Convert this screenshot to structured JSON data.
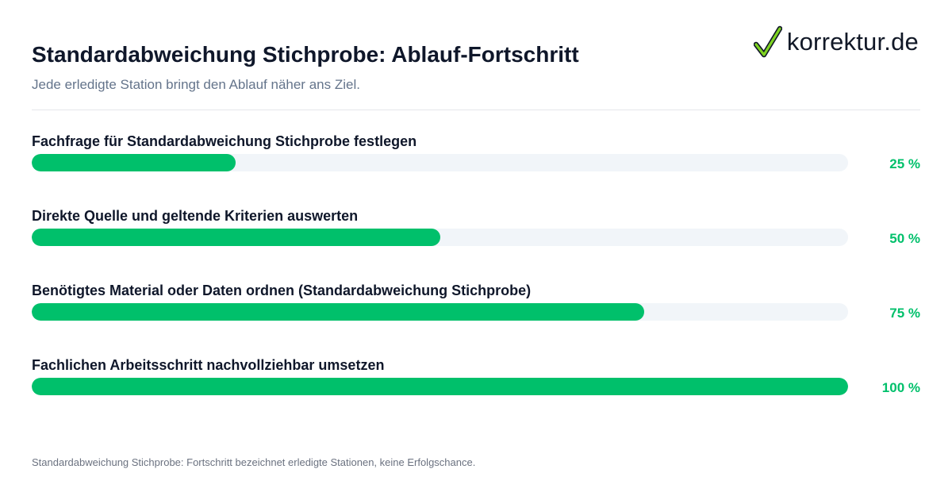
{
  "header": {
    "title": "Standardabweichung Stichprobe: Ablauf-Fortschritt",
    "subtitle": "Jede erledigte Station bringt den Ablauf näher ans Ziel."
  },
  "brand": {
    "name": "korrektur.de",
    "icon": "checkmark-icon",
    "check_color": "#7ed321"
  },
  "colors": {
    "accent": "#00c06b",
    "track": "#f1f5f9"
  },
  "chart_data": {
    "type": "bar",
    "orientation": "horizontal",
    "title": "Standardabweichung Stichprobe: Ablauf-Fortschritt",
    "subtitle": "Jede erledigte Station bringt den Ablauf näher ans Ziel.",
    "xlim": [
      0,
      100
    ],
    "unit": "%",
    "categories": [
      "Fachfrage für Standardabweichung Stichprobe festlegen",
      "Direkte Quelle und geltende Kriterien auswerten",
      "Benötigtes Material oder Daten ordnen (Standardabweichung Stichprobe)",
      "Fachlichen Arbeitsschritt nachvollziehbar umsetzen"
    ],
    "values": [
      25,
      50,
      75,
      100
    ],
    "value_labels": [
      "25 %",
      "50 %",
      "75 %",
      "100 %"
    ]
  },
  "footnote": "Standardabweichung Stichprobe: Fortschritt bezeichnet erledigte Stationen, keine Erfolgschance."
}
